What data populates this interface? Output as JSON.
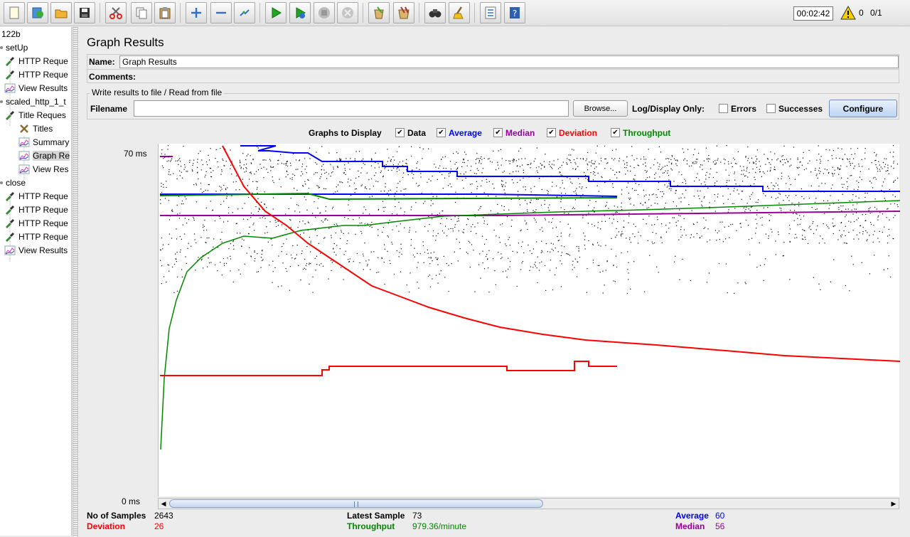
{
  "toolbar": {
    "buttons": [
      "new-icon",
      "templates-icon",
      "open-icon",
      "save-icon",
      "cut-icon",
      "copy-icon",
      "paste-icon",
      "expand-icon",
      "collapse-icon",
      "toggle-icon",
      "start-icon",
      "start-no-pauses-icon",
      "stop-icon",
      "shutdown-icon",
      "clear-icon",
      "clear-all-icon",
      "search-icon",
      "reset-search-icon",
      "function-helper-icon",
      "help-icon"
    ],
    "timer": "00:02:42",
    "warning_count": "0",
    "thread_count": "0/1"
  },
  "tree": {
    "items": [
      {
        "label": "122b",
        "icon": "",
        "indent": 0
      },
      {
        "label": "setUp",
        "icon": "thread-group-icon",
        "indent": 1
      },
      {
        "label": "HTTP Reque",
        "icon": "sampler-pipette-icon",
        "indent": 2
      },
      {
        "label": "HTTP Reque",
        "icon": "sampler-pipette-icon",
        "indent": 2
      },
      {
        "label": "View Results",
        "icon": "listener-graph-icon",
        "indent": 2
      },
      {
        "label": "scaled_http_1_t",
        "icon": "thread-group-icon",
        "indent": 1
      },
      {
        "label": "Title Reques",
        "icon": "sampler-pipette-icon",
        "indent": 2
      },
      {
        "label": "Titles",
        "icon": "config-tools-icon",
        "indent": 3
      },
      {
        "label": "Summary",
        "icon": "listener-graph-icon",
        "indent": 3
      },
      {
        "label": "Graph Re",
        "icon": "listener-graph-icon",
        "indent": 3,
        "selected": true
      },
      {
        "label": "View Res",
        "icon": "listener-graph-icon",
        "indent": 3
      },
      {
        "label": "close",
        "icon": "thread-group-icon",
        "indent": 1
      },
      {
        "label": "HTTP Reque",
        "icon": "sampler-pipette-icon",
        "indent": 2
      },
      {
        "label": "HTTP Reque",
        "icon": "sampler-pipette-icon",
        "indent": 2
      },
      {
        "label": "HTTP Reque",
        "icon": "sampler-pipette-icon",
        "indent": 2
      },
      {
        "label": "HTTP Reque",
        "icon": "sampler-pipette-icon",
        "indent": 2
      },
      {
        "label": "View Results",
        "icon": "listener-graph-icon",
        "indent": 2
      }
    ]
  },
  "panel": {
    "title": "Graph Results",
    "name_label": "Name:",
    "name_value": "Graph Results",
    "comments_label": "Comments:",
    "file_group_title": "Write results to file / Read from file",
    "filename_label": "Filename",
    "filename_value": "",
    "browse_label": "Browse...",
    "log_display_label": "Log/Display Only:",
    "errors_label": "Errors",
    "errors_checked": false,
    "successes_label": "Successes",
    "successes_checked": false,
    "configure_label": "Configure"
  },
  "graphs_to_display": {
    "label": "Graphs to Display",
    "options": [
      {
        "label": "Data",
        "checked": true,
        "color": "#000000"
      },
      {
        "label": "Average",
        "checked": true,
        "color": "#0000ff"
      },
      {
        "label": "Median",
        "checked": true,
        "color": "#990099"
      },
      {
        "label": "Deviation",
        "checked": true,
        "color": "#ff0000"
      },
      {
        "label": "Throughput",
        "checked": true,
        "color": "#008800"
      }
    ]
  },
  "graph": {
    "y_max_label": "70  ms",
    "y_min_label": "0  ms",
    "colors": {
      "data": "#000000",
      "average": "#0000ff",
      "median": "#990099",
      "deviation": "#ff0000",
      "throughput": "#008800"
    }
  },
  "stats": {
    "samples_label": "No of Samples",
    "samples_value": "2643",
    "deviation_label": "Deviation",
    "deviation_value": "26",
    "latest_label": "Latest Sample",
    "latest_value": "73",
    "throughput_label": "Throughput",
    "throughput_value": "979.36/minute",
    "average_label": "Average",
    "average_value": "60",
    "median_label": "Median",
    "median_value": "56"
  }
}
